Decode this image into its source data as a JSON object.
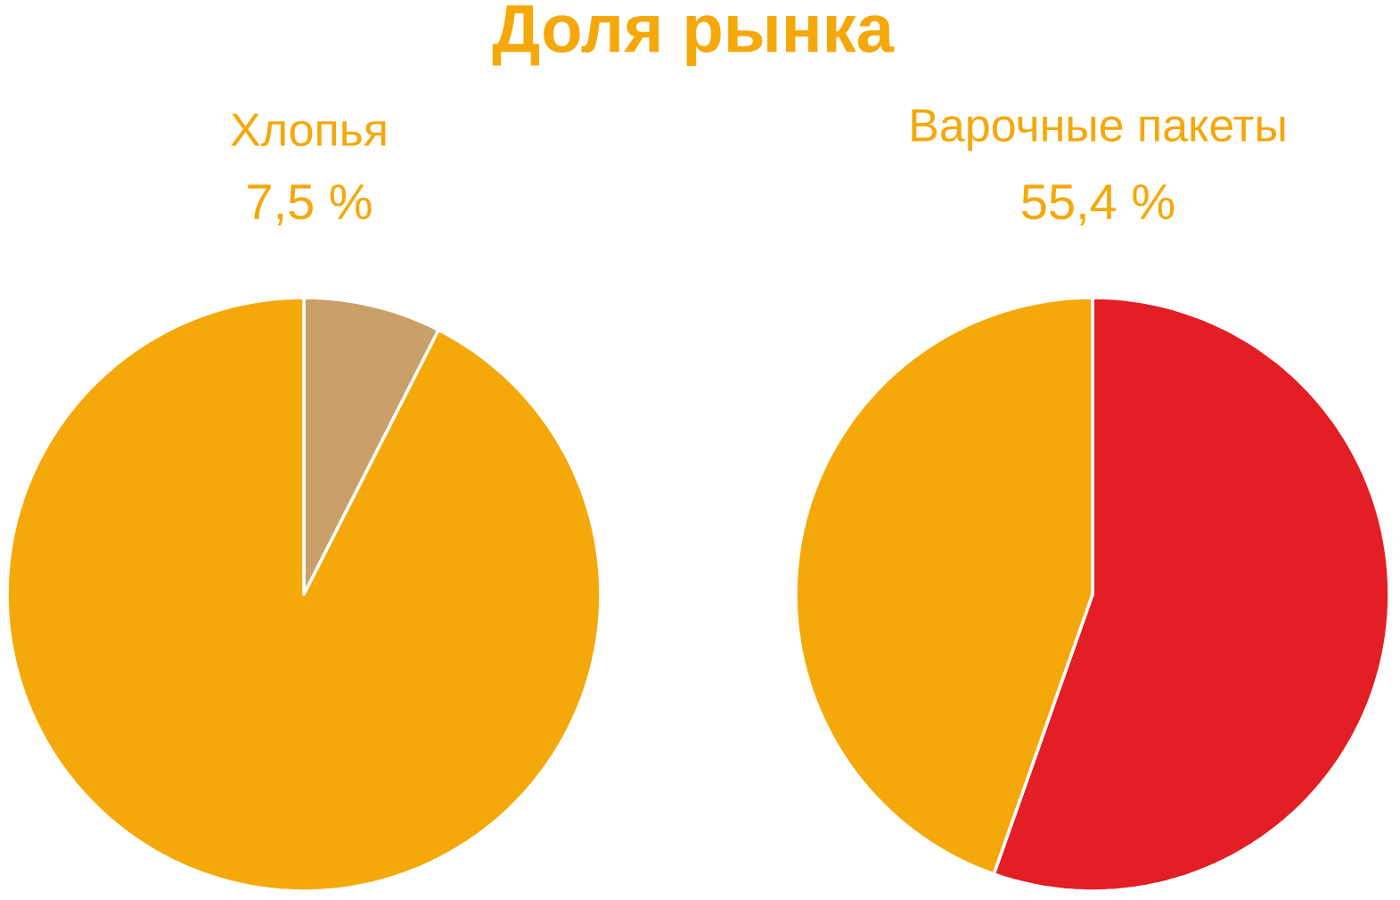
{
  "chart_data": [
    {
      "type": "other",
      "title": "Доля рынка"
    },
    {
      "type": "pie",
      "title": "Хлопья",
      "subtitle": "7,5 %",
      "categories": [
        null,
        null
      ],
      "values": [
        7.5,
        92.5
      ],
      "colors": [
        "#c9a06a",
        "#f5a80a"
      ]
    },
    {
      "type": "pie",
      "title": "Варочные пакеты",
      "subtitle": "55,4 %",
      "categories": [
        null,
        null
      ],
      "values": [
        55.4,
        44.6
      ],
      "colors": [
        "#e31e24",
        "#f5a80a"
      ]
    }
  ]
}
